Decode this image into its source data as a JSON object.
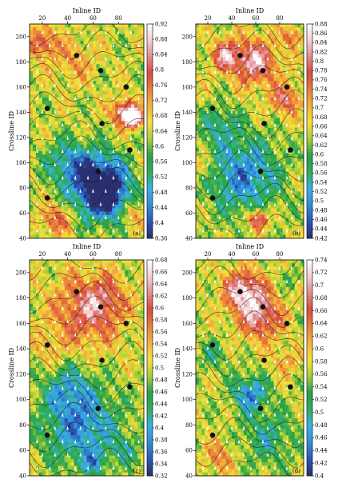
{
  "chart_data": [
    {
      "type": "heatmap",
      "panel_label": "(a)",
      "xlabel": "Inline ID",
      "ylabel": "Crossline ID",
      "xticks": [
        20,
        40,
        60,
        80
      ],
      "yticks": [
        40,
        60,
        80,
        100,
        120,
        140,
        160,
        180,
        200
      ],
      "xlim": [
        10,
        100
      ],
      "ylim": [
        40,
        210
      ],
      "colorbar_ticks": [
        "0.92",
        "0.88",
        "0.84",
        "0.8",
        "0.76",
        "0.72",
        "0.68",
        "0.64",
        "0.6",
        "0.56",
        "0.52",
        "0.48",
        "0.44",
        "0.4",
        "0.36"
      ],
      "colorbar_range": [
        0.36,
        0.92
      ],
      "wells": [
        [
          47,
          185
        ],
        [
          66,
          173
        ],
        [
          86,
          160
        ],
        [
          24,
          143
        ],
        [
          67,
          131
        ],
        [
          89,
          110
        ],
        [
          24,
          72
        ],
        [
          64,
          93
        ]
      ]
    },
    {
      "type": "heatmap",
      "panel_label": "(b)",
      "xlabel": "Inline ID",
      "ylabel": "Crossline ID",
      "xticks": [
        20,
        40,
        60,
        80
      ],
      "yticks": [
        40,
        60,
        80,
        100,
        120,
        140,
        160,
        180,
        200
      ],
      "xlim": [
        10,
        100
      ],
      "ylim": [
        40,
        210
      ],
      "colorbar_ticks": [
        "0.88",
        "0.86",
        "0.84",
        "0.82",
        "0.8",
        "0.78",
        "0.76",
        "0.74",
        "0.72",
        "0.7",
        "0.68",
        "0.66",
        "0.64",
        "0.62",
        "0.6",
        "0.58",
        "0.56",
        "0.54",
        "0.52",
        "0.5",
        "0.48",
        "0.46",
        "0.44",
        "0.42"
      ],
      "colorbar_range": [
        0.42,
        0.88
      ],
      "wells": [
        [
          47,
          185
        ],
        [
          66,
          173
        ],
        [
          86,
          160
        ],
        [
          24,
          143
        ],
        [
          67,
          131
        ],
        [
          89,
          110
        ],
        [
          24,
          72
        ],
        [
          64,
          93
        ]
      ]
    },
    {
      "type": "heatmap",
      "panel_label": "(c)",
      "xlabel": "Inline ID",
      "ylabel": "Crossline ID",
      "xticks": [
        20,
        40,
        60,
        80
      ],
      "yticks": [
        40,
        60,
        80,
        100,
        120,
        140,
        160,
        180,
        200
      ],
      "xlim": [
        10,
        100
      ],
      "ylim": [
        40,
        210
      ],
      "colorbar_ticks": [
        "0.68",
        "0.66",
        "0.64",
        "0.62",
        "0.6",
        "0.58",
        "0.56",
        "0.54",
        "0.52",
        "0.5",
        "0.48",
        "0.46",
        "0.44",
        "0.42",
        "0.4",
        "0.38",
        "0.36",
        "0.34",
        "0.32"
      ],
      "colorbar_range": [
        0.32,
        0.68
      ],
      "wells": [
        [
          47,
          185
        ],
        [
          66,
          173
        ],
        [
          86,
          160
        ],
        [
          24,
          143
        ],
        [
          67,
          131
        ],
        [
          89,
          110
        ],
        [
          24,
          72
        ],
        [
          64,
          93
        ]
      ]
    },
    {
      "type": "heatmap",
      "panel_label": "(d)",
      "xlabel": "Inline ID",
      "ylabel": "Crossline ID",
      "xticks": [
        20,
        40,
        60,
        80
      ],
      "yticks": [
        40,
        60,
        80,
        100,
        120,
        140,
        160,
        180,
        200
      ],
      "xlim": [
        10,
        100
      ],
      "ylim": [
        40,
        210
      ],
      "colorbar_ticks": [
        "0.74",
        "0.72",
        "0.7",
        "0.68",
        "0.66",
        "0.64",
        "0.62",
        "0.6",
        "0.58",
        "0.56",
        "0.54",
        "0.52",
        "0.5",
        "0.48",
        "0.46",
        "0.44",
        "0.42",
        "0.4"
      ],
      "colorbar_range": [
        0.4,
        0.74
      ],
      "wells": [
        [
          47,
          185
        ],
        [
          66,
          173
        ],
        [
          86,
          160
        ],
        [
          24,
          143
        ],
        [
          67,
          131
        ],
        [
          89,
          110
        ],
        [
          24,
          72
        ],
        [
          64,
          93
        ]
      ]
    }
  ],
  "colors": {
    "scale": [
      "#2a2f6e",
      "#2b55b8",
      "#2f8fd8",
      "#3cb0e8",
      "#2fae5a",
      "#28a048",
      "#a6cf3a",
      "#f4e23a",
      "#f3b33c",
      "#e9823a",
      "#d94a3a",
      "#e38b8b",
      "#f3cfd3",
      "#ffffff"
    ],
    "contour": "#1a1a1a",
    "well": "#111111",
    "vector": "#ffffff"
  }
}
